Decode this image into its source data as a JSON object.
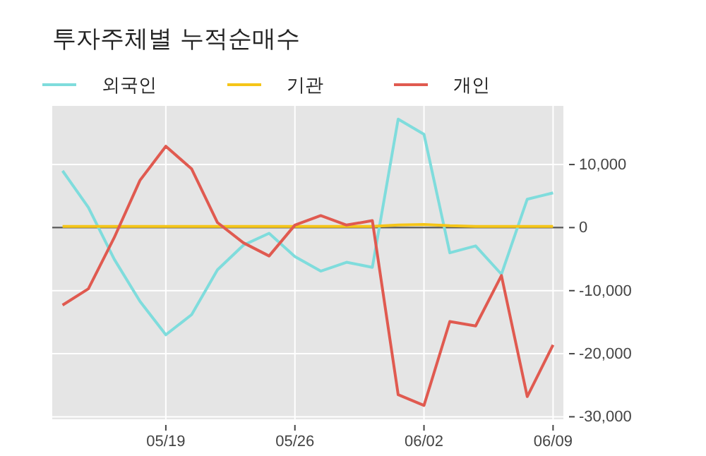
{
  "chart_data": {
    "type": "line",
    "title": "투자주체별 누적순매수",
    "categories": [
      null,
      null,
      null,
      null,
      "05/19",
      null,
      null,
      null,
      null,
      "05/26",
      null,
      null,
      null,
      null,
      "06/02",
      null,
      null,
      null,
      null,
      "06/09"
    ],
    "series": [
      {
        "name": "외국인",
        "color": "#7fdcdc",
        "values": [
          9000,
          3200,
          -5000,
          -11700,
          -17000,
          -13800,
          -6700,
          -2800,
          -900,
          -4600,
          -6900,
          -5500,
          -6300,
          17200,
          14800,
          -4000,
          -2900,
          -7400,
          4500,
          5500
        ]
      },
      {
        "name": "기관",
        "color": "#f5c518",
        "values": [
          200,
          200,
          200,
          200,
          200,
          200,
          200,
          200,
          200,
          200,
          200,
          200,
          200,
          400,
          500,
          300,
          200,
          200,
          200,
          200
        ]
      },
      {
        "name": "개인",
        "color": "#e05a50",
        "values": [
          -12300,
          -9700,
          -1600,
          7500,
          12900,
          9300,
          800,
          -2400,
          -4500,
          400,
          1900,
          400,
          1100,
          -26500,
          -28200,
          -14900,
          -15600,
          -7600,
          -26800,
          -18600
        ]
      }
    ],
    "ylim": [
      -30400,
      19300
    ],
    "yticks": [
      {
        "value": -30000,
        "label": "-30,000"
      },
      {
        "value": -20000,
        "label": "-20,000"
      },
      {
        "value": -10000,
        "label": "-10,000"
      },
      0,
      {
        "value": 10000,
        "label": "10,000"
      }
    ],
    "grid": true,
    "legend": "top left",
    "line_style": "solid",
    "marker": "none",
    "ref_lines": [
      {
        "axis": "y",
        "value": 0,
        "color": "#555555"
      }
    ]
  }
}
